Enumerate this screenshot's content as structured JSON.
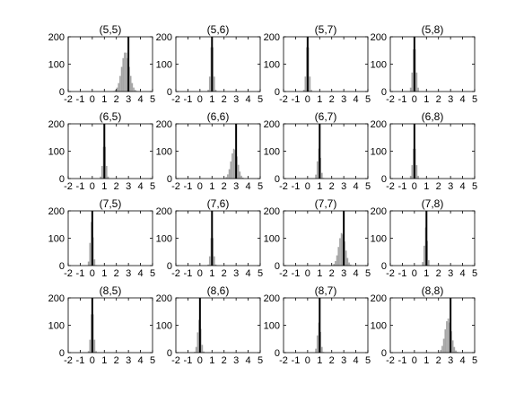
{
  "chart_data": {
    "type": "histogram-grid",
    "layout": {
      "rows": 4,
      "cols": 4
    },
    "xlim": [
      -2,
      5
    ],
    "ylim": [
      0,
      200
    ],
    "x_ticks": [
      "-2",
      "-1",
      "0",
      "1",
      "2",
      "3",
      "4",
      "5"
    ],
    "y_ticks": [
      "0",
      "100",
      "200"
    ],
    "bin_width": 0.125,
    "colors": {
      "bars": "#a6a6a6",
      "reference_line": "#000000",
      "axes": "#000000"
    },
    "panels": [
      {
        "title": "(5,5)",
        "reference": 3.0,
        "center": 2.75,
        "sd": 0.32,
        "peak": 145
      },
      {
        "title": "(5,6)",
        "reference": 1.0,
        "center": 1.0,
        "sd": 0.12,
        "peak": 185
      },
      {
        "title": "(5,7)",
        "reference": 0.0,
        "center": 0.0,
        "sd": 0.12,
        "peak": 185
      },
      {
        "title": "(5,8)",
        "reference": 0.0,
        "center": 0.0,
        "sd": 0.14,
        "peak": 170
      },
      {
        "title": "(6,5)",
        "reference": 1.0,
        "center": 1.0,
        "sd": 0.13,
        "peak": 130
      },
      {
        "title": "(6,6)",
        "reference": 3.0,
        "center": 2.85,
        "sd": 0.27,
        "peak": 110
      },
      {
        "title": "(6,7)",
        "reference": 1.0,
        "center": 0.95,
        "sd": 0.13,
        "peak": 110
      },
      {
        "title": "(6,8)",
        "reference": 0.0,
        "center": 0.0,
        "sd": 0.14,
        "peak": 120
      },
      {
        "title": "(7,5)",
        "reference": 0.0,
        "center": -0.05,
        "sd": 0.12,
        "peak": 160
      },
      {
        "title": "(7,6)",
        "reference": 1.0,
        "center": 1.0,
        "sd": 0.12,
        "peak": 115
      },
      {
        "title": "(7,7)",
        "reference": 3.0,
        "center": 2.85,
        "sd": 0.27,
        "peak": 120
      },
      {
        "title": "(7,8)",
        "reference": 1.0,
        "center": 0.95,
        "sd": 0.12,
        "peak": 140
      },
      {
        "title": "(8,5)",
        "reference": 0.0,
        "center": 0.0,
        "sd": 0.12,
        "peak": 160
      },
      {
        "title": "(8,6)",
        "reference": 0.0,
        "center": -0.05,
        "sd": 0.14,
        "peak": 120
      },
      {
        "title": "(8,7)",
        "reference": 1.0,
        "center": 0.95,
        "sd": 0.13,
        "peak": 110
      },
      {
        "title": "(8,8)",
        "reference": 3.0,
        "center": 2.8,
        "sd": 0.27,
        "peak": 125
      }
    ]
  }
}
